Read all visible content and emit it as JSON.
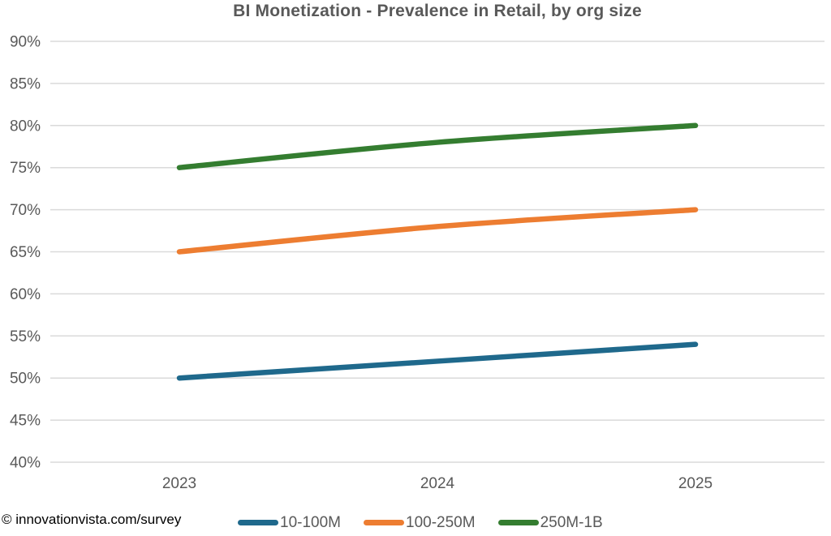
{
  "title": "BI Monetization - Prevalence in Retail, by org size",
  "footer": {
    "attribution": "© innovationvista.com/survey"
  },
  "colors": {
    "title_text": "#595959",
    "axis_text": "#595959",
    "gridline": "#dadada",
    "attribution_text": "#000000",
    "series_blue": "#1f698c",
    "series_orange": "#ed7d31",
    "series_green": "#347d30"
  },
  "chart_data": {
    "type": "line",
    "title": "BI Monetization - Prevalence in Retail, by org size",
    "categories": [
      "2023",
      "2024",
      "2025"
    ],
    "series": [
      {
        "name": "10-100M",
        "color": "#1f698c",
        "values": [
          50,
          52,
          54
        ]
      },
      {
        "name": "100-250M",
        "color": "#ed7d31",
        "values": [
          65,
          68,
          70
        ]
      },
      {
        "name": "250M-1B",
        "color": "#347d30",
        "values": [
          75,
          78,
          80
        ]
      }
    ],
    "xlabel": "",
    "ylabel": "",
    "ylim": [
      40,
      90
    ],
    "ytick_step": 5,
    "ytick_suffix": "%",
    "grid": true,
    "line_smoothing": true,
    "legend_position": "bottom"
  }
}
